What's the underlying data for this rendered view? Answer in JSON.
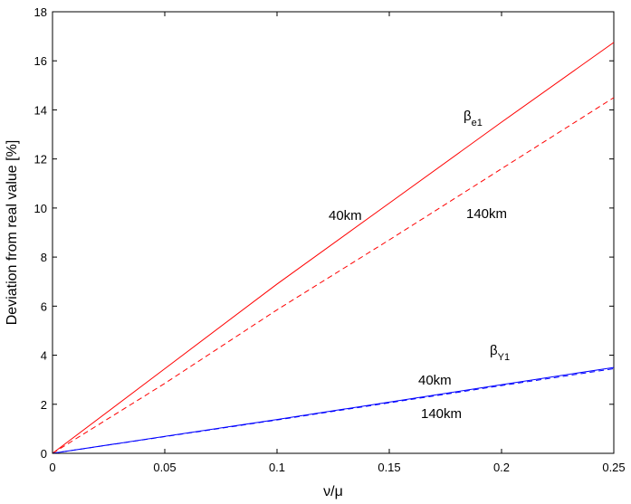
{
  "chart_data": {
    "type": "line",
    "xlabel": "ν/μ",
    "ylabel": "Deviation from real value [%]",
    "xlim": [
      0,
      0.25
    ],
    "ylim": [
      0,
      18
    ],
    "xticks": [
      0,
      0.05,
      0.1,
      0.15,
      0.2,
      0.25
    ],
    "xtick_labels": [
      "0",
      "0.05",
      "0.1",
      "0.15",
      "0.2",
      "0.25"
    ],
    "yticks": [
      0,
      2,
      4,
      6,
      8,
      10,
      12,
      14,
      16,
      18
    ],
    "ytick_labels": [
      "0",
      "2",
      "4",
      "6",
      "8",
      "10",
      "12",
      "14",
      "16",
      "18"
    ],
    "grid": false,
    "series": [
      {
        "color": "#ff0000",
        "style": "solid",
        "x": [
          0,
          0.05,
          0.1,
          0.15,
          0.2,
          0.25
        ],
        "y": [
          0,
          3.45,
          6.9,
          10.2,
          13.5,
          16.75
        ]
      },
      {
        "color": "#ff0000",
        "style": "dashed",
        "x": [
          0,
          0.05,
          0.1,
          0.15,
          0.2,
          0.25
        ],
        "y": [
          0,
          2.85,
          5.85,
          8.7,
          11.6,
          14.5
        ]
      },
      {
        "color": "#0000ff",
        "style": "solid",
        "x": [
          0,
          0.05,
          0.1,
          0.15,
          0.2,
          0.25
        ],
        "y": [
          0,
          0.69,
          1.38,
          2.09,
          2.8,
          3.5
        ]
      },
      {
        "color": "#0000ff",
        "style": "dashed",
        "x": [
          0,
          0.05,
          0.1,
          0.15,
          0.2,
          0.25
        ],
        "y": [
          0,
          0.68,
          1.36,
          2.06,
          2.76,
          3.45
        ]
      }
    ],
    "annotations": {
      "beta_e1": {
        "base": "β",
        "sub": "e1"
      },
      "red_solid": "40km",
      "red_dashed": "140km",
      "beta_y1": {
        "base": "β",
        "sub": "Y1"
      },
      "blue_solid": "40km",
      "blue_dashed": "140km"
    }
  }
}
